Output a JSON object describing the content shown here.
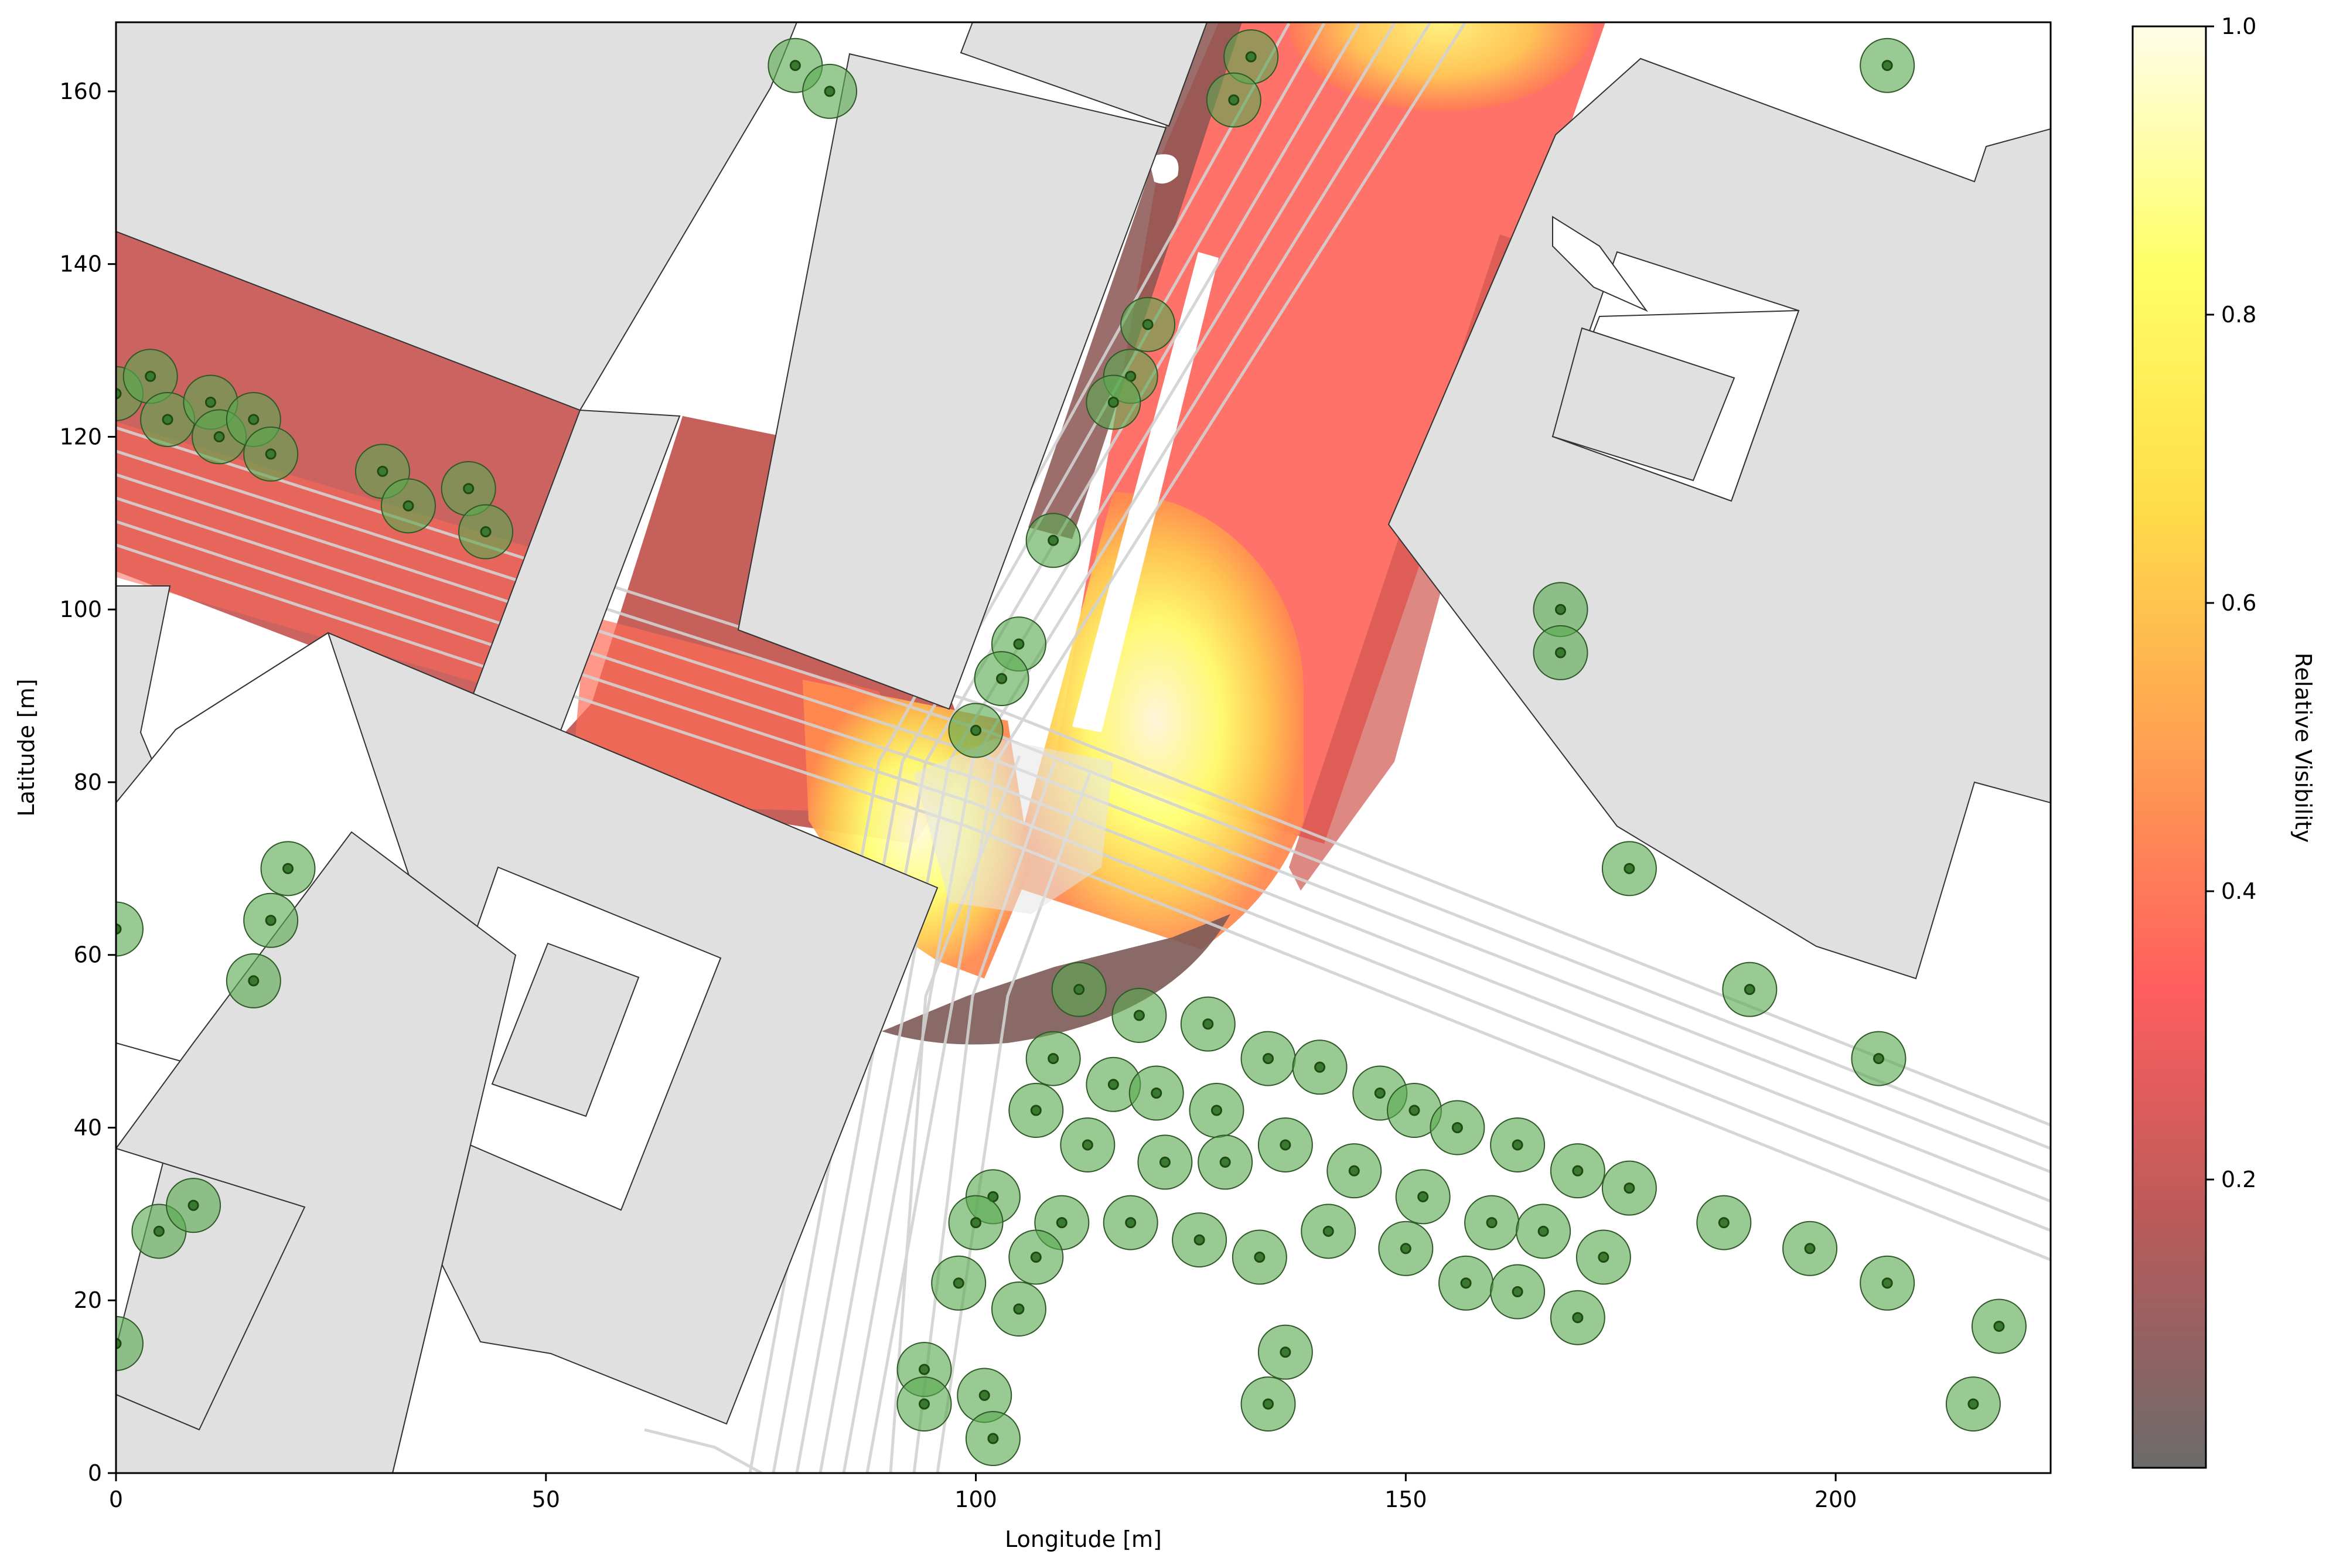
{
  "chart_data": {
    "type": "map",
    "xlabel": "Longitude [m]",
    "ylabel": "Latitude [m]",
    "xlim": [
      0,
      225
    ],
    "ylim": [
      0,
      168
    ],
    "xticks": [
      0,
      50,
      100,
      150,
      200
    ],
    "yticks": [
      0,
      20,
      40,
      60,
      80,
      100,
      120,
      140,
      160
    ],
    "colorbar": {
      "label": "Relative Visibility",
      "range": [
        0,
        1
      ],
      "ticks": [
        "0.2",
        "0.4",
        "0.6",
        "0.8",
        "1.0"
      ],
      "colormap": [
        "#6b6b6b",
        "#b85a5a",
        "#ff5e5e",
        "#ffa052",
        "#ffdc4a",
        "#ffff66",
        "#fffde8"
      ]
    },
    "colors": {
      "building": "#e0e0e0",
      "building_edge": "#333333",
      "tree_fill": "#5aaa50",
      "tree_dot": "#1f4a12",
      "road_line": "#d2d2d2"
    },
    "trees": [
      [
        79,
        163
      ],
      [
        83,
        160
      ],
      [
        132,
        164
      ],
      [
        130,
        159
      ],
      [
        206,
        163
      ],
      [
        0,
        125
      ],
      [
        4,
        127
      ],
      [
        6,
        122
      ],
      [
        11,
        124
      ],
      [
        12,
        120
      ],
      [
        16,
        122
      ],
      [
        18,
        118
      ],
      [
        31,
        116
      ],
      [
        34,
        112
      ],
      [
        41,
        114
      ],
      [
        43,
        109
      ],
      [
        120,
        133
      ],
      [
        118,
        127
      ],
      [
        116,
        124
      ],
      [
        109,
        108
      ],
      [
        105,
        96
      ],
      [
        103,
        92
      ],
      [
        100,
        86
      ],
      [
        168,
        100
      ],
      [
        168,
        95
      ],
      [
        176,
        70
      ],
      [
        190,
        56
      ],
      [
        205,
        48
      ],
      [
        0,
        63
      ],
      [
        20,
        70
      ],
      [
        18,
        64
      ],
      [
        16,
        57
      ],
      [
        5,
        28
      ],
      [
        9,
        31
      ],
      [
        0,
        15
      ],
      [
        112,
        56
      ],
      [
        119,
        53
      ],
      [
        127,
        52
      ],
      [
        134,
        48
      ],
      [
        140,
        47
      ],
      [
        147,
        44
      ],
      [
        151,
        42
      ],
      [
        156,
        40
      ],
      [
        163,
        38
      ],
      [
        109,
        48
      ],
      [
        107,
        42
      ],
      [
        116,
        45
      ],
      [
        121,
        44
      ],
      [
        128,
        42
      ],
      [
        113,
        38
      ],
      [
        122,
        36
      ],
      [
        129,
        36
      ],
      [
        136,
        38
      ],
      [
        144,
        35
      ],
      [
        152,
        32
      ],
      [
        160,
        29
      ],
      [
        170,
        35
      ],
      [
        176,
        33
      ],
      [
        102,
        32
      ],
      [
        100,
        29
      ],
      [
        110,
        29
      ],
      [
        107,
        25
      ],
      [
        118,
        29
      ],
      [
        126,
        27
      ],
      [
        133,
        25
      ],
      [
        141,
        28
      ],
      [
        150,
        26
      ],
      [
        166,
        28
      ],
      [
        173,
        25
      ],
      [
        98,
        22
      ],
      [
        105,
        19
      ],
      [
        157,
        22
      ],
      [
        163,
        21
      ],
      [
        170,
        18
      ],
      [
        187,
        29
      ],
      [
        197,
        26
      ],
      [
        206,
        22
      ],
      [
        219,
        17
      ],
      [
        216,
        8
      ],
      [
        94,
        12
      ],
      [
        94,
        8
      ],
      [
        101,
        9
      ],
      [
        102,
        4
      ],
      [
        136,
        14
      ],
      [
        134,
        8
      ]
    ]
  }
}
